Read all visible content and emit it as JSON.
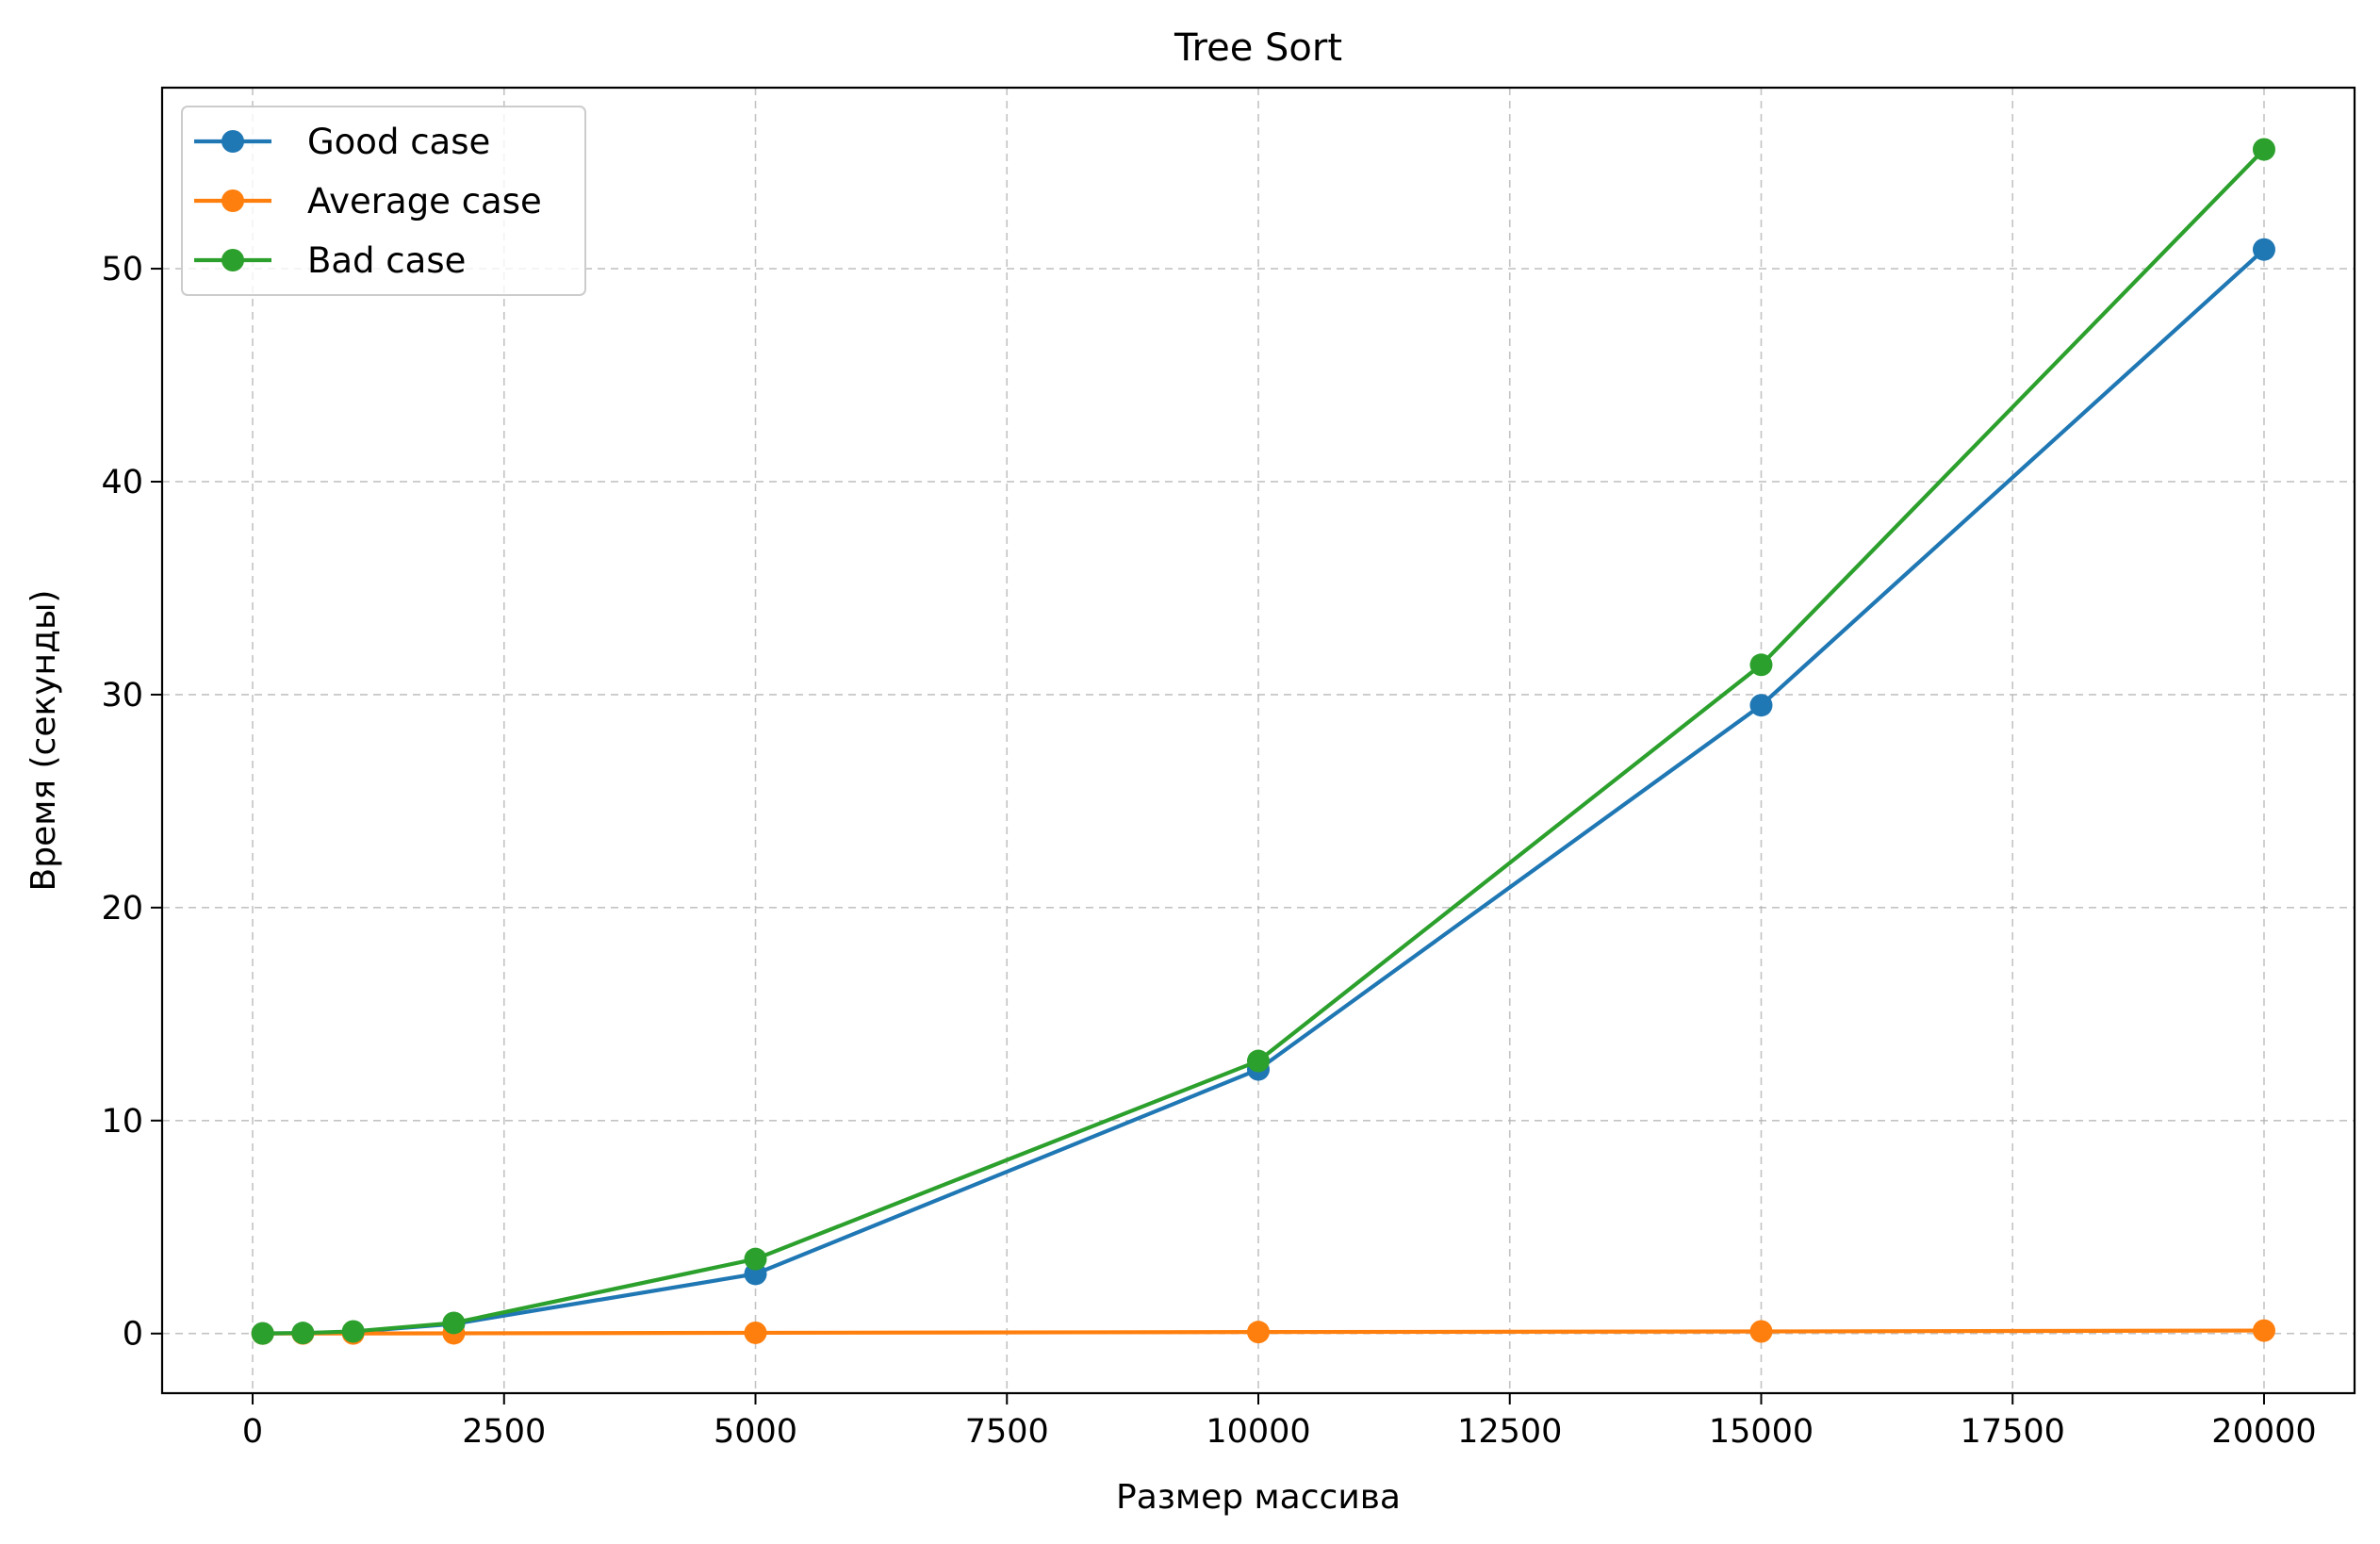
{
  "chart_data": {
    "type": "line",
    "title": "Tree Sort",
    "xlabel": "Размер массива",
    "ylabel": "Время (секунды)",
    "xlim": [
      -900,
      20900
    ],
    "ylim": [
      -2.8,
      58.5
    ],
    "xticks": [
      0,
      2500,
      5000,
      7500,
      10000,
      12500,
      15000,
      17500,
      20000
    ],
    "yticks": [
      0,
      10,
      20,
      30,
      40,
      50
    ],
    "grid": true,
    "legend_position": "upper-left",
    "series": [
      {
        "name": "Good case",
        "color": "#1f77b4",
        "x": [
          100,
          500,
          1000,
          2000,
          5000,
          10000,
          15000,
          20000
        ],
        "y": [
          0.005,
          0.02,
          0.08,
          0.45,
          2.8,
          12.4,
          29.5,
          50.9
        ]
      },
      {
        "name": "Average case",
        "color": "#ff7f0e",
        "x": [
          100,
          500,
          1000,
          2000,
          5000,
          10000,
          15000,
          20000
        ],
        "y": [
          0.001,
          0.003,
          0.006,
          0.012,
          0.035,
          0.07,
          0.1,
          0.14
        ]
      },
      {
        "name": "Bad case",
        "color": "#2ca02c",
        "x": [
          100,
          500,
          1000,
          2000,
          5000,
          10000,
          15000,
          20000
        ],
        "y": [
          0.005,
          0.025,
          0.1,
          0.5,
          3.5,
          12.8,
          31.4,
          55.6
        ]
      }
    ]
  }
}
